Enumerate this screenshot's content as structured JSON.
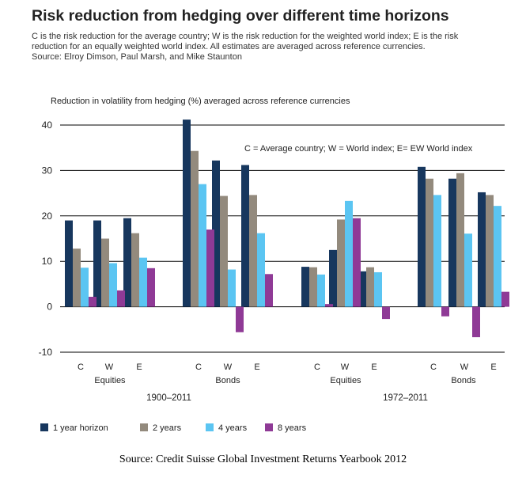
{
  "header": {
    "title": "Risk reduction from hedging over different time horizons",
    "subtitle_line1": "C is the risk reduction for the average country; W is the risk reduction for the weighted world index; E is the risk",
    "subtitle_line2": "reduction for an equally weighted world index.  All estimates are averaged across reference currencies.",
    "subtitle_line3": "Source: Elroy Dimson, Paul Marsh, and Mike Staunton"
  },
  "footer": {
    "source": "Source: Credit Suisse Global Investment Returns Yearbook 2012"
  },
  "chart_data": {
    "type": "bar",
    "ylabel": "Reduction in volatility from hedging (%) averaged across reference currencies",
    "annotation": "C = Average country; W = World index; E= EW World index",
    "ylim": [
      -10,
      40
    ],
    "yticks": [
      -10,
      0,
      10,
      20,
      30,
      40
    ],
    "grid": true,
    "legend_position": "bottom",
    "categories": [
      "C",
      "W",
      "E",
      "C",
      "W",
      "E",
      "C",
      "W",
      "E",
      "C",
      "W",
      "E"
    ],
    "groups": [
      {
        "period": "1900–2011",
        "asset": "Equities"
      },
      {
        "period": "1900–2011",
        "asset": "Bonds"
      },
      {
        "period": "1972–2011",
        "asset": "Equities"
      },
      {
        "period": "1972–2011",
        "asset": "Bonds"
      }
    ],
    "periods": [
      "1900–2011",
      "1972–2011"
    ],
    "series": [
      {
        "name": "1 year horizon",
        "color": "#17375e",
        "values": [
          19,
          19,
          19.5,
          41.2,
          32.2,
          31.2,
          8.8,
          12.5,
          7.8,
          30.8,
          28.2,
          25.2
        ]
      },
      {
        "name": "2 years",
        "color": "#938a7d",
        "values": [
          12.8,
          15,
          16.2,
          34.3,
          24.4,
          24.6,
          8.7,
          19.2,
          8.7,
          28.2,
          29.4,
          24.6
        ]
      },
      {
        "name": "4 years",
        "color": "#5bc5f2",
        "values": [
          8.6,
          9.6,
          10.8,
          27,
          8.2,
          16.2,
          7.1,
          23.3,
          7.6,
          24.6,
          16.1,
          22.2
        ]
      },
      {
        "name": "8 years",
        "color": "#8f3a96",
        "values": [
          2.2,
          3.6,
          8.5,
          17,
          -5.6,
          7.2,
          0.6,
          19.5,
          -2.7,
          -2.1,
          -6.7,
          3.3
        ]
      }
    ]
  }
}
